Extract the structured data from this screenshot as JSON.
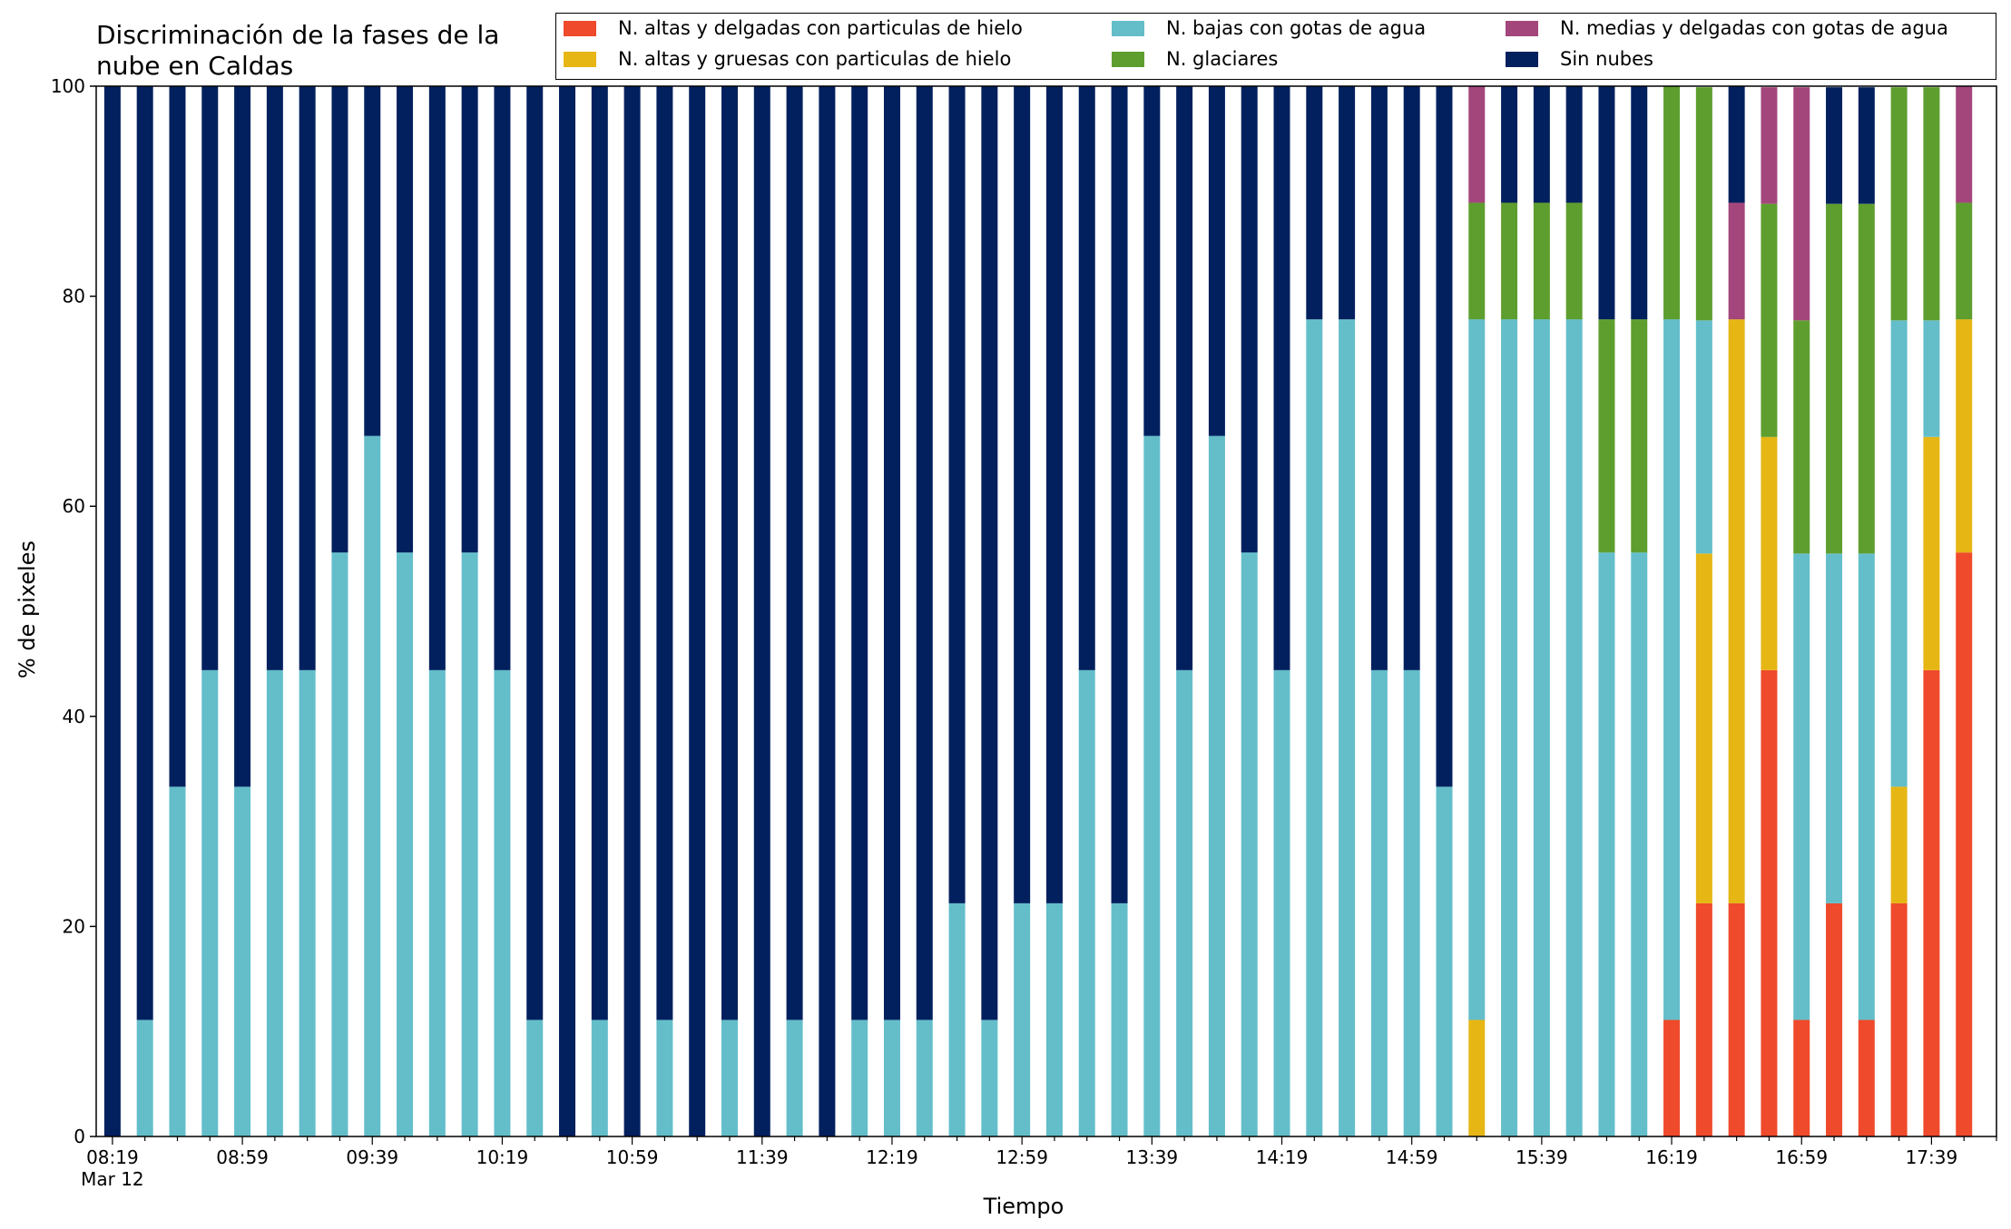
{
  "chart_data": {
    "type": "bar",
    "stacked": true,
    "title": "Discriminación de la fases de la\nnube en Caldas",
    "xlabel": "Tiempo",
    "ylabel": "% de pixeles",
    "ylim": [
      0,
      100
    ],
    "yticks": [
      "0",
      "20",
      "40",
      "60",
      "80",
      "100"
    ],
    "grid": false,
    "legend_position": "top",
    "x_tick_labels": [
      "08:19\nMar 12",
      "08:59",
      "09:39",
      "10:19",
      "10:59",
      "11:39",
      "12:19",
      "12:59",
      "13:39",
      "14:19",
      "14:59",
      "15:39",
      "16:19",
      "16:59",
      "17:39"
    ],
    "categories": [
      "08:19",
      "08:29",
      "08:39",
      "08:49",
      "08:59",
      "09:09",
      "09:19",
      "09:29",
      "09:39",
      "09:49",
      "09:59",
      "10:09",
      "10:19",
      "10:29",
      "10:39",
      "10:49",
      "10:59",
      "11:09",
      "11:19",
      "11:29",
      "11:39",
      "11:49",
      "11:59",
      "12:09",
      "12:19",
      "12:29",
      "12:39",
      "12:49",
      "12:59",
      "13:09",
      "13:19",
      "13:29",
      "13:39",
      "13:49",
      "13:59",
      "14:09",
      "14:19",
      "14:29",
      "14:39",
      "14:49",
      "14:59",
      "15:09",
      "15:19",
      "15:29",
      "15:39",
      "15:49",
      "15:59",
      "16:09",
      "16:19",
      "16:29",
      "16:39",
      "16:49",
      "16:59",
      "17:09",
      "17:19",
      "17:29",
      "17:39",
      "17:49"
    ],
    "series": [
      {
        "name": "N. altas y delgadas con particulas de hielo",
        "color": "#EF4A2B",
        "values": [
          0,
          0,
          0,
          0,
          0,
          0,
          0,
          0,
          0,
          0,
          0,
          0,
          0,
          0,
          0,
          0,
          0,
          0,
          0,
          0,
          0,
          0,
          0,
          0,
          0,
          0,
          0,
          0,
          0,
          0,
          0,
          0,
          0,
          0,
          0,
          0,
          0,
          0,
          0,
          0,
          0,
          0,
          0,
          0,
          0,
          0,
          0,
          0,
          11.1,
          22.2,
          22.2,
          44.4,
          11.1,
          22.2,
          11.1,
          22.2,
          44.4,
          55.6
        ]
      },
      {
        "name": "N. altas y gruesas con particulas de hielo",
        "color": "#E6B614",
        "values": [
          0,
          0,
          0,
          0,
          0,
          0,
          0,
          0,
          0,
          0,
          0,
          0,
          0,
          0,
          0,
          0,
          0,
          0,
          0,
          0,
          0,
          0,
          0,
          0,
          0,
          0,
          0,
          0,
          0,
          0,
          0,
          0,
          0,
          0,
          0,
          0,
          0,
          0,
          0,
          0,
          0,
          0,
          11.1,
          0,
          0,
          0,
          0,
          0,
          0,
          33.3,
          55.6,
          22.2,
          0,
          0,
          0,
          11.1,
          22.2,
          22.2
        ]
      },
      {
        "name": "N. bajas con gotas de agua",
        "color": "#63BECA",
        "values": [
          0,
          11.1,
          33.3,
          44.4,
          33.3,
          44.4,
          44.4,
          55.6,
          66.7,
          55.6,
          44.4,
          55.6,
          44.4,
          11.1,
          0,
          11.1,
          0,
          11.1,
          0,
          11.1,
          0,
          11.1,
          0,
          11.1,
          11.1,
          11.1,
          22.2,
          11.1,
          22.2,
          22.2,
          44.4,
          22.2,
          66.7,
          44.4,
          66.7,
          55.6,
          44.4,
          77.8,
          77.8,
          44.4,
          44.4,
          33.3,
          66.7,
          77.8,
          77.8,
          77.8,
          55.6,
          55.6,
          66.7,
          22.2,
          0,
          0,
          44.4,
          33.3,
          44.4,
          44.4,
          11.1,
          0
        ]
      },
      {
        "name": "N. glaciares",
        "color": "#5E9E2F",
        "values": [
          0,
          0,
          0,
          0,
          0,
          0,
          0,
          0,
          0,
          0,
          0,
          0,
          0,
          0,
          0,
          0,
          0,
          0,
          0,
          0,
          0,
          0,
          0,
          0,
          0,
          0,
          0,
          0,
          0,
          0,
          0,
          0,
          0,
          0,
          0,
          0,
          0,
          0,
          0,
          0,
          0,
          0,
          11.1,
          11.1,
          11.1,
          11.1,
          22.2,
          22.2,
          22.2,
          22.2,
          0,
          22.2,
          22.2,
          33.3,
          33.3,
          22.2,
          22.2,
          11.1
        ]
      },
      {
        "name": "N. medias y delgadas con gotas de agua",
        "color": "#A3467C",
        "values": [
          0,
          0,
          0,
          0,
          0,
          0,
          0,
          0,
          0,
          0,
          0,
          0,
          0,
          0,
          0,
          0,
          0,
          0,
          0,
          0,
          0,
          0,
          0,
          0,
          0,
          0,
          0,
          0,
          0,
          0,
          0,
          0,
          0,
          0,
          0,
          0,
          0,
          0,
          0,
          0,
          0,
          0,
          11.1,
          0,
          0,
          0,
          0,
          0,
          0,
          0,
          11.1,
          11.1,
          22.2,
          0,
          0,
          0,
          0,
          11.1
        ]
      },
      {
        "name": "Sin nubes",
        "color": "#03205E",
        "values": [
          100,
          88.9,
          66.7,
          55.6,
          66.7,
          55.6,
          55.6,
          44.4,
          33.3,
          44.4,
          55.6,
          44.4,
          55.6,
          88.9,
          100,
          88.9,
          100,
          88.9,
          100,
          88.9,
          100,
          88.9,
          100,
          88.9,
          88.9,
          88.9,
          77.8,
          88.9,
          77.8,
          77.8,
          55.6,
          77.8,
          33.3,
          55.6,
          33.3,
          44.4,
          55.6,
          22.2,
          22.2,
          55.6,
          55.6,
          66.7,
          0,
          11.1,
          11.1,
          11.1,
          22.2,
          22.2,
          0,
          0,
          11.1,
          0,
          0,
          11.1,
          11.1,
          0,
          0,
          0
        ]
      }
    ]
  }
}
